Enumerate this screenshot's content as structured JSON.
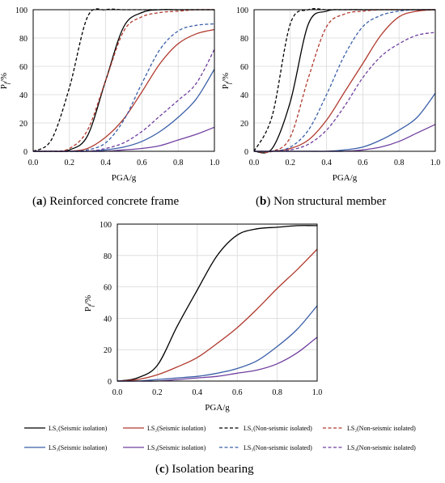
{
  "legend": {
    "items": [
      {
        "label": "LS₁(Seismic isolation)",
        "color": "#000000",
        "dashed": false
      },
      {
        "label": "LS₂(Seismic isolation)",
        "color": "#b03a2e",
        "dashed": false
      },
      {
        "label": "LS₁(Non-seismic isolated)",
        "color": "#000000",
        "dashed": true
      },
      {
        "label": "LS₂(Non-seismic isolated)",
        "color": "#b03a2e",
        "dashed": true
      },
      {
        "label": "LS₃(Seismic isolation)",
        "color": "#3a5fa8",
        "dashed": false
      },
      {
        "label": "LS₄(Seismic isolation)",
        "color": "#7040a0",
        "dashed": false
      },
      {
        "label": "LS₃(Non-seismic isolated)",
        "color": "#3a5fa8",
        "dashed": true
      },
      {
        "label": "LS₄(Non-seismic isolated)",
        "color": "#7040a0",
        "dashed": true
      }
    ]
  },
  "chart_data": [
    {
      "type": "line",
      "caption_letter": "a",
      "caption_text": " Reinforced concrete frame",
      "xlabel": "PGA/g",
      "ylabel_main": "P",
      "ylabel_sub": "f",
      "ylabel_unit": "/%",
      "xlim": [
        0,
        1
      ],
      "ylim": [
        0,
        100
      ],
      "xticks": [
        "0.0",
        "0.2",
        "0.4",
        "0.6",
        "0.8",
        "1.0"
      ],
      "yticks": [
        "0",
        "20",
        "40",
        "60",
        "80",
        "100"
      ],
      "x": [
        0,
        0.1,
        0.2,
        0.3,
        0.4,
        0.5,
        0.6,
        0.7,
        0.8,
        0.9,
        1.0
      ],
      "series": [
        {
          "legend_index": 0,
          "values": [
            0,
            0,
            1,
            11,
            50,
            88,
            98,
            100,
            100,
            100,
            100
          ]
        },
        {
          "legend_index": 1,
          "values": [
            0,
            0,
            0,
            2,
            10,
            23,
            42,
            62,
            76,
            83,
            86
          ]
        },
        {
          "legend_index": 2,
          "values": [
            0,
            8,
            45,
            95,
            100,
            100,
            100,
            100,
            100,
            100,
            100
          ]
        },
        {
          "legend_index": 3,
          "values": [
            0,
            0,
            2,
            15,
            50,
            85,
            95,
            98,
            99,
            100,
            100
          ]
        },
        {
          "legend_index": 4,
          "values": [
            0,
            0,
            0,
            0,
            1,
            3,
            7,
            14,
            24,
            37,
            58
          ]
        },
        {
          "legend_index": 5,
          "values": [
            0,
            0,
            0,
            0,
            0,
            1,
            2,
            4,
            8,
            12,
            17
          ]
        },
        {
          "legend_index": 6,
          "values": [
            0,
            0,
            0,
            1,
            6,
            22,
            48,
            72,
            85,
            89,
            90
          ]
        },
        {
          "legend_index": 7,
          "values": [
            0,
            0,
            0,
            0,
            2,
            6,
            14,
            25,
            36,
            48,
            72
          ]
        }
      ]
    },
    {
      "type": "line",
      "caption_letter": "b",
      "caption_text": " Non structural member",
      "xlabel": "PGA/g",
      "ylabel_main": "P",
      "ylabel_sub": "f",
      "ylabel_unit": "/%",
      "xlim": [
        0,
        1
      ],
      "ylim": [
        0,
        100
      ],
      "xticks": [
        "0.0",
        "0.2",
        "0.4",
        "0.6",
        "0.8",
        "1.0"
      ],
      "yticks": [
        "0",
        "20",
        "40",
        "60",
        "80",
        "100"
      ],
      "x": [
        0,
        0.1,
        0.2,
        0.3,
        0.4,
        0.5,
        0.6,
        0.7,
        0.8,
        0.9,
        1.0
      ],
      "series": [
        {
          "legend_index": 0,
          "values": [
            0,
            2,
            35,
            90,
            99,
            100,
            100,
            100,
            100,
            100,
            100
          ]
        },
        {
          "legend_index": 1,
          "values": [
            0,
            0,
            2,
            8,
            22,
            42,
            62,
            82,
            95,
            99,
            100
          ]
        },
        {
          "legend_index": 2,
          "values": [
            0,
            25,
            90,
            100,
            100,
            100,
            100,
            100,
            100,
            100,
            100
          ]
        },
        {
          "legend_index": 3,
          "values": [
            0,
            0,
            10,
            52,
            88,
            97,
            99,
            100,
            100,
            100,
            100
          ]
        },
        {
          "legend_index": 4,
          "values": [
            0,
            0,
            0,
            0,
            0,
            1,
            3,
            8,
            15,
            24,
            41
          ]
        },
        {
          "legend_index": 5,
          "values": [
            0,
            0,
            0,
            0,
            0,
            0,
            1,
            3,
            7,
            13,
            19
          ]
        },
        {
          "legend_index": 6,
          "values": [
            0,
            0,
            3,
            15,
            40,
            68,
            88,
            96,
            99,
            100,
            100
          ]
        },
        {
          "legend_index": 7,
          "values": [
            0,
            0,
            1,
            5,
            15,
            32,
            52,
            67,
            76,
            82,
            84
          ]
        }
      ]
    },
    {
      "type": "line",
      "caption_letter": "c",
      "caption_text": " Isolation bearing",
      "xlabel": "PGA/g",
      "ylabel_main": "P",
      "ylabel_sub": "f",
      "ylabel_unit": "/%",
      "xlim": [
        0,
        1
      ],
      "ylim": [
        0,
        100
      ],
      "xticks": [
        "0.0",
        "0.2",
        "0.4",
        "0.6",
        "0.8",
        "1.0"
      ],
      "yticks": [
        "0",
        "20",
        "40",
        "60",
        "80",
        "100"
      ],
      "x": [
        0,
        0.1,
        0.2,
        0.3,
        0.4,
        0.5,
        0.6,
        0.7,
        0.8,
        0.9,
        1.0
      ],
      "series": [
        {
          "legend_index": 0,
          "values": [
            0,
            2,
            10,
            35,
            58,
            80,
            93,
            97,
            98,
            99,
            99
          ]
        },
        {
          "legend_index": 1,
          "values": [
            0,
            1,
            4,
            9,
            15,
            24,
            34,
            46,
            59,
            71,
            84
          ]
        },
        {
          "legend_index": 4,
          "values": [
            0,
            0,
            1,
            2,
            3,
            5,
            8,
            13,
            22,
            33,
            48
          ]
        },
        {
          "legend_index": 5,
          "values": [
            0,
            0,
            0,
            1,
            2,
            3,
            5,
            7,
            11,
            18,
            28
          ]
        }
      ]
    }
  ]
}
